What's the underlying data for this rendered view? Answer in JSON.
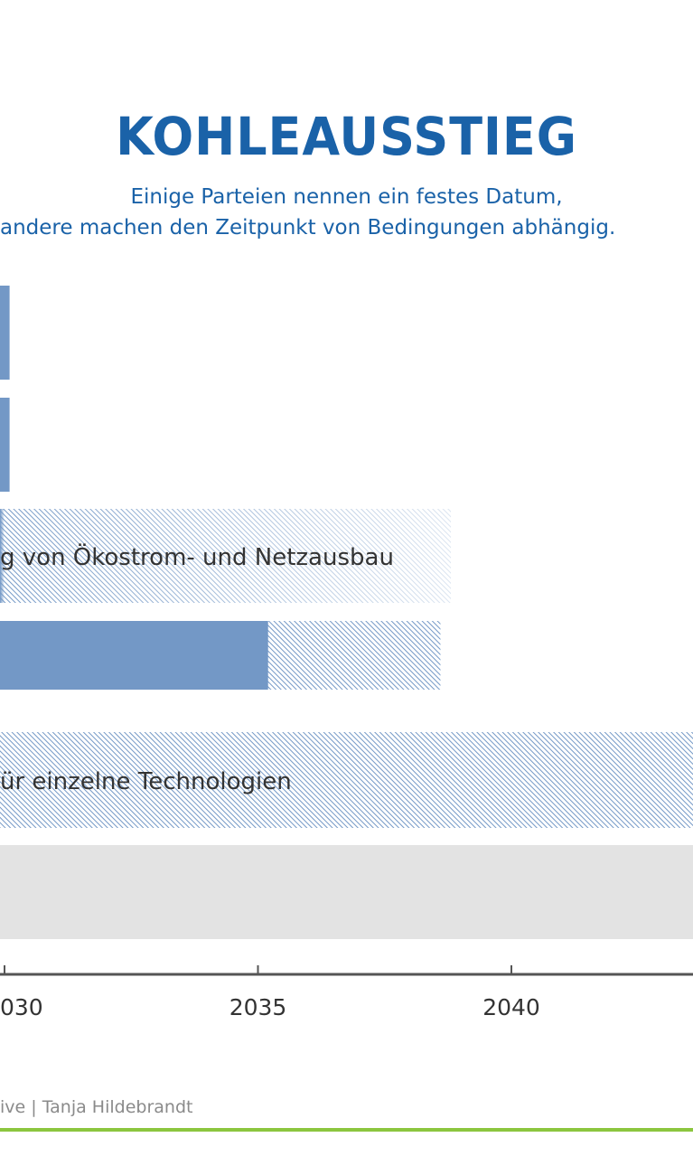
{
  "header": {
    "title": "KOHLEAUSSTIEG",
    "subtitle_line1": "Einige Parteien nennen ein festes Datum,",
    "subtitle_line2": "andere machen den Zeitpunkt von Bedingungen abhängig."
  },
  "credit": "ive | Tanja Hildebrandt",
  "colors": {
    "title": "#1a62a8",
    "solid_bar": "#7398c6",
    "hatch_line": "#7398c6",
    "gray_bar": "#e3e3e3",
    "axis": "#555555",
    "label_text": "#333333",
    "footer_line": "#8cc63f"
  },
  "chart_data": {
    "type": "bar",
    "orientation": "horizontal",
    "x_axis_ticks": [
      "030",
      "2035",
      "2040"
    ],
    "bars": [
      {
        "solid_until": 2030.1,
        "hatched_until": null,
        "gradient": false,
        "label": ""
      },
      {
        "solid_until": 2030.1,
        "hatched_until": null,
        "gradient": false,
        "label": ""
      },
      {
        "solid_until": 2030.0,
        "hatched_until": 2038.8,
        "gradient": true,
        "label": "g von Ökostrom- und Netzausbau"
      },
      {
        "solid_until": 2035.2,
        "hatched_until": 2038.6,
        "gradient": false,
        "label": ""
      },
      {
        "solid_until": null,
        "hatched_until": 2043.7,
        "gradient": false,
        "label": "ür einzelne Technologien"
      },
      {
        "solid_until": null,
        "hatched_until": null,
        "gray_until": 2043.7,
        "gradient": false,
        "label": ""
      }
    ]
  }
}
